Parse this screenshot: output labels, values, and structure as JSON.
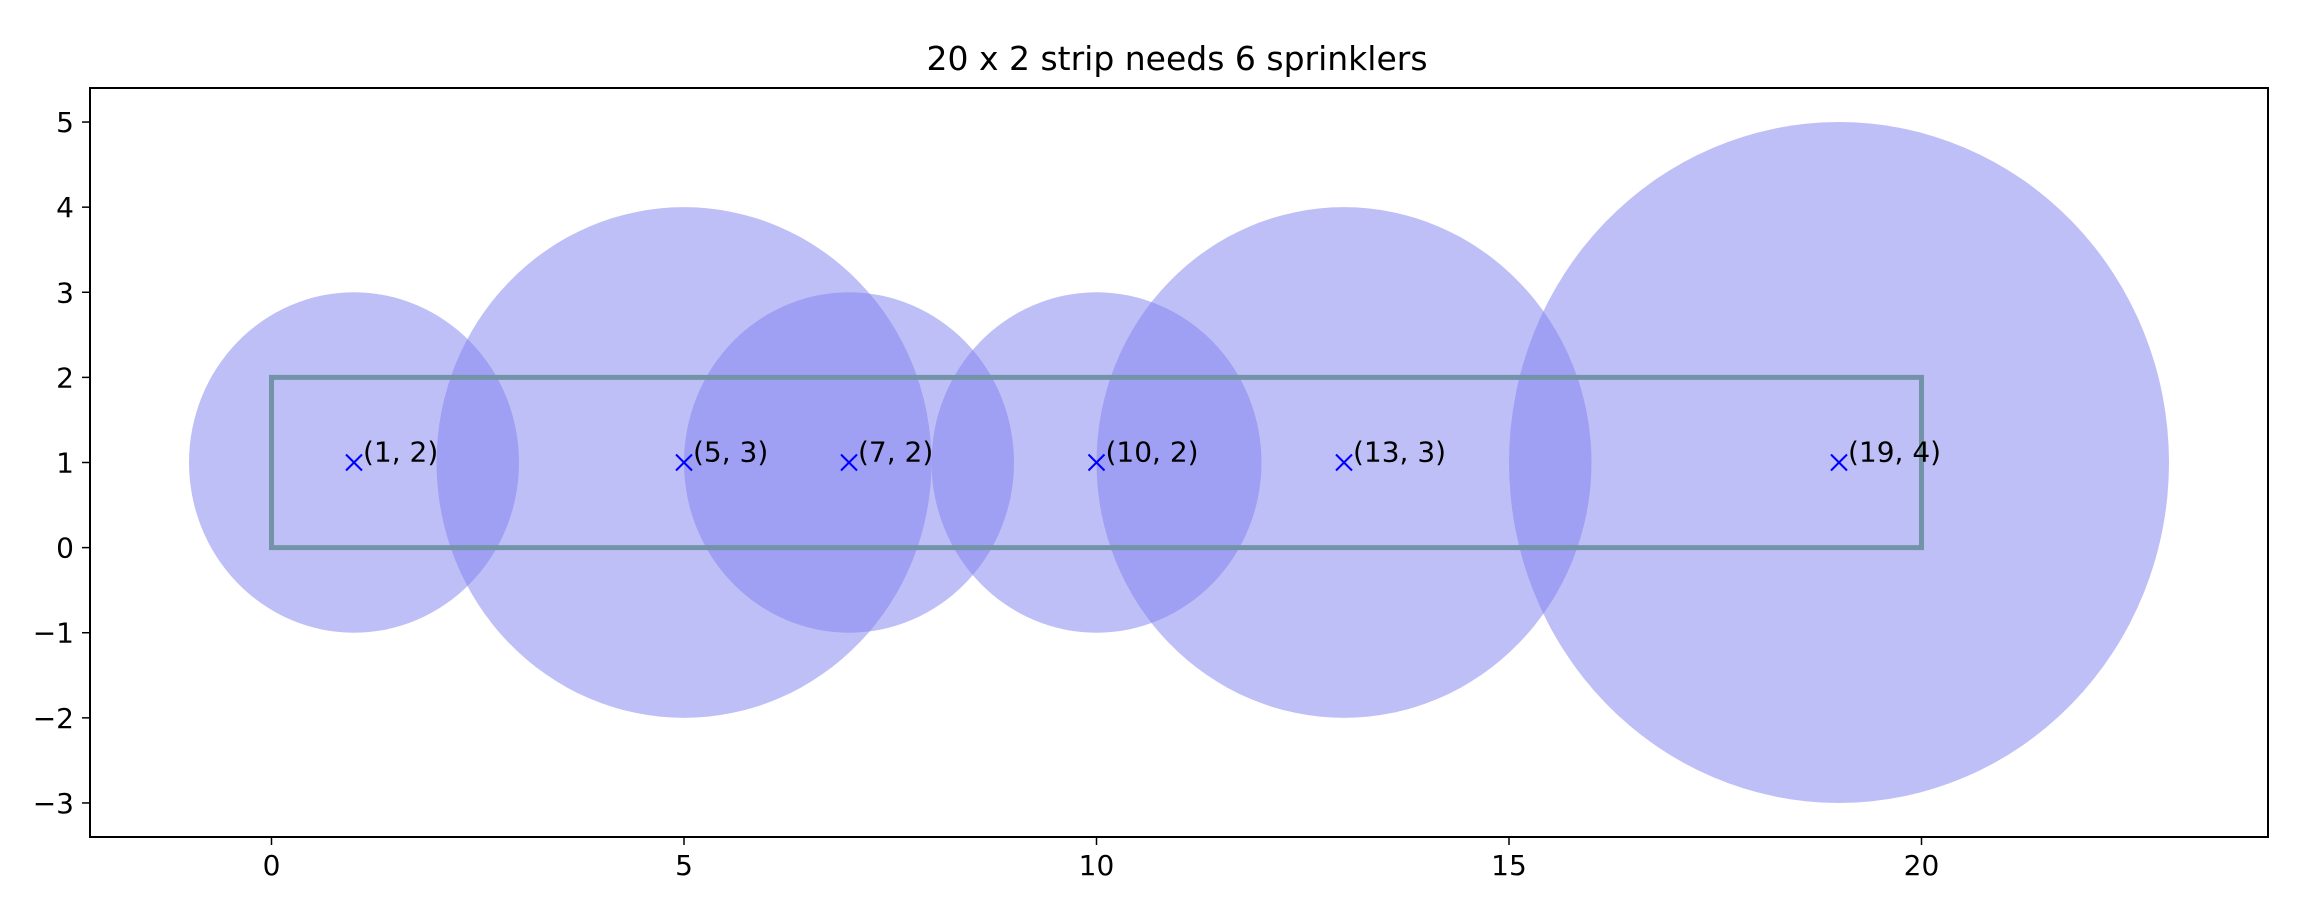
{
  "chart_data": {
    "type": "scatter",
    "title": "20 x 2 strip needs 6 sprinklers",
    "xlabel": "",
    "ylabel": "",
    "xlim": [
      -2.2,
      24.2
    ],
    "ylim": [
      -3.4,
      5.4
    ],
    "x_ticks": [
      0,
      5,
      10,
      15,
      20
    ],
    "y_ticks": [
      -3,
      -2,
      -1,
      0,
      1,
      2,
      3,
      4,
      5
    ],
    "y_tick_labels": [
      "−3",
      "−2",
      "−1",
      "0",
      "1",
      "2",
      "3",
      "4",
      "5"
    ],
    "strip": {
      "x": 0,
      "y": 0,
      "width": 20,
      "height": 2,
      "color": "#7394a8"
    },
    "circle_color": "#8080f0",
    "marker_color": "#0000ff",
    "sprinklers": [
      {
        "x": 1,
        "y": 1,
        "radius": 2,
        "label": "(1, 2)"
      },
      {
        "x": 5,
        "y": 1,
        "radius": 3,
        "label": "(5, 3)"
      },
      {
        "x": 7,
        "y": 1,
        "radius": 2,
        "label": "(7, 2)"
      },
      {
        "x": 10,
        "y": 1,
        "radius": 2,
        "label": "(10, 2)"
      },
      {
        "x": 13,
        "y": 1,
        "radius": 3,
        "label": "(13, 3)"
      },
      {
        "x": 19,
        "y": 1,
        "radius": 4,
        "label": "(19, 4)"
      }
    ],
    "grid": false,
    "legend": "none"
  }
}
